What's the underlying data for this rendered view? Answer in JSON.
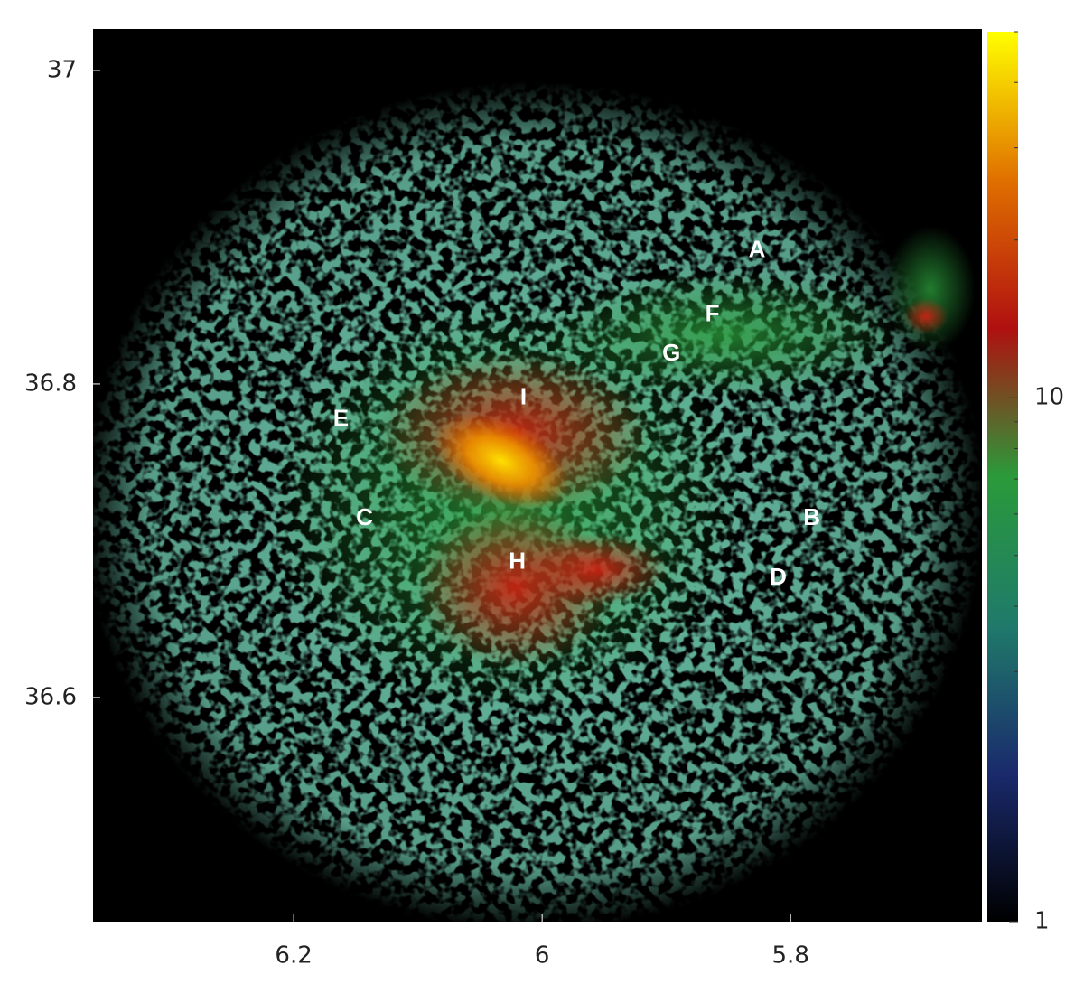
{
  "chart_data": {
    "type": "image",
    "xlim": [
      6.3615,
      5.646
    ],
    "ylim": [
      36.457,
      37.0265
    ],
    "xticks": [
      6.2,
      6,
      5.8
    ],
    "yticks": [
      37,
      36.8,
      36.6
    ],
    "colorbar": {
      "lim": [
        1,
        50
      ],
      "ticks": [
        1,
        10
      ],
      "log": true,
      "colors": [
        "#000000",
        "#1a2a6c",
        "#1f7a6a",
        "#2a9a3a",
        "#b01010",
        "#e07000",
        "#ffff00"
      ]
    },
    "annotations": [
      {
        "text": "A",
        "x": 5.827,
        "y": 36.885
      },
      {
        "text": "F",
        "x": 5.863,
        "y": 36.844
      },
      {
        "text": "G",
        "x": 5.896,
        "y": 36.819
      },
      {
        "text": "E",
        "x": 6.162,
        "y": 36.777
      },
      {
        "text": "I",
        "x": 6.015,
        "y": 36.791
      },
      {
        "text": "C",
        "x": 6.143,
        "y": 36.714
      },
      {
        "text": "B",
        "x": 5.783,
        "y": 36.714
      },
      {
        "text": "H",
        "x": 6.02,
        "y": 36.686
      },
      {
        "text": "D",
        "x": 5.81,
        "y": 36.676
      }
    ]
  }
}
